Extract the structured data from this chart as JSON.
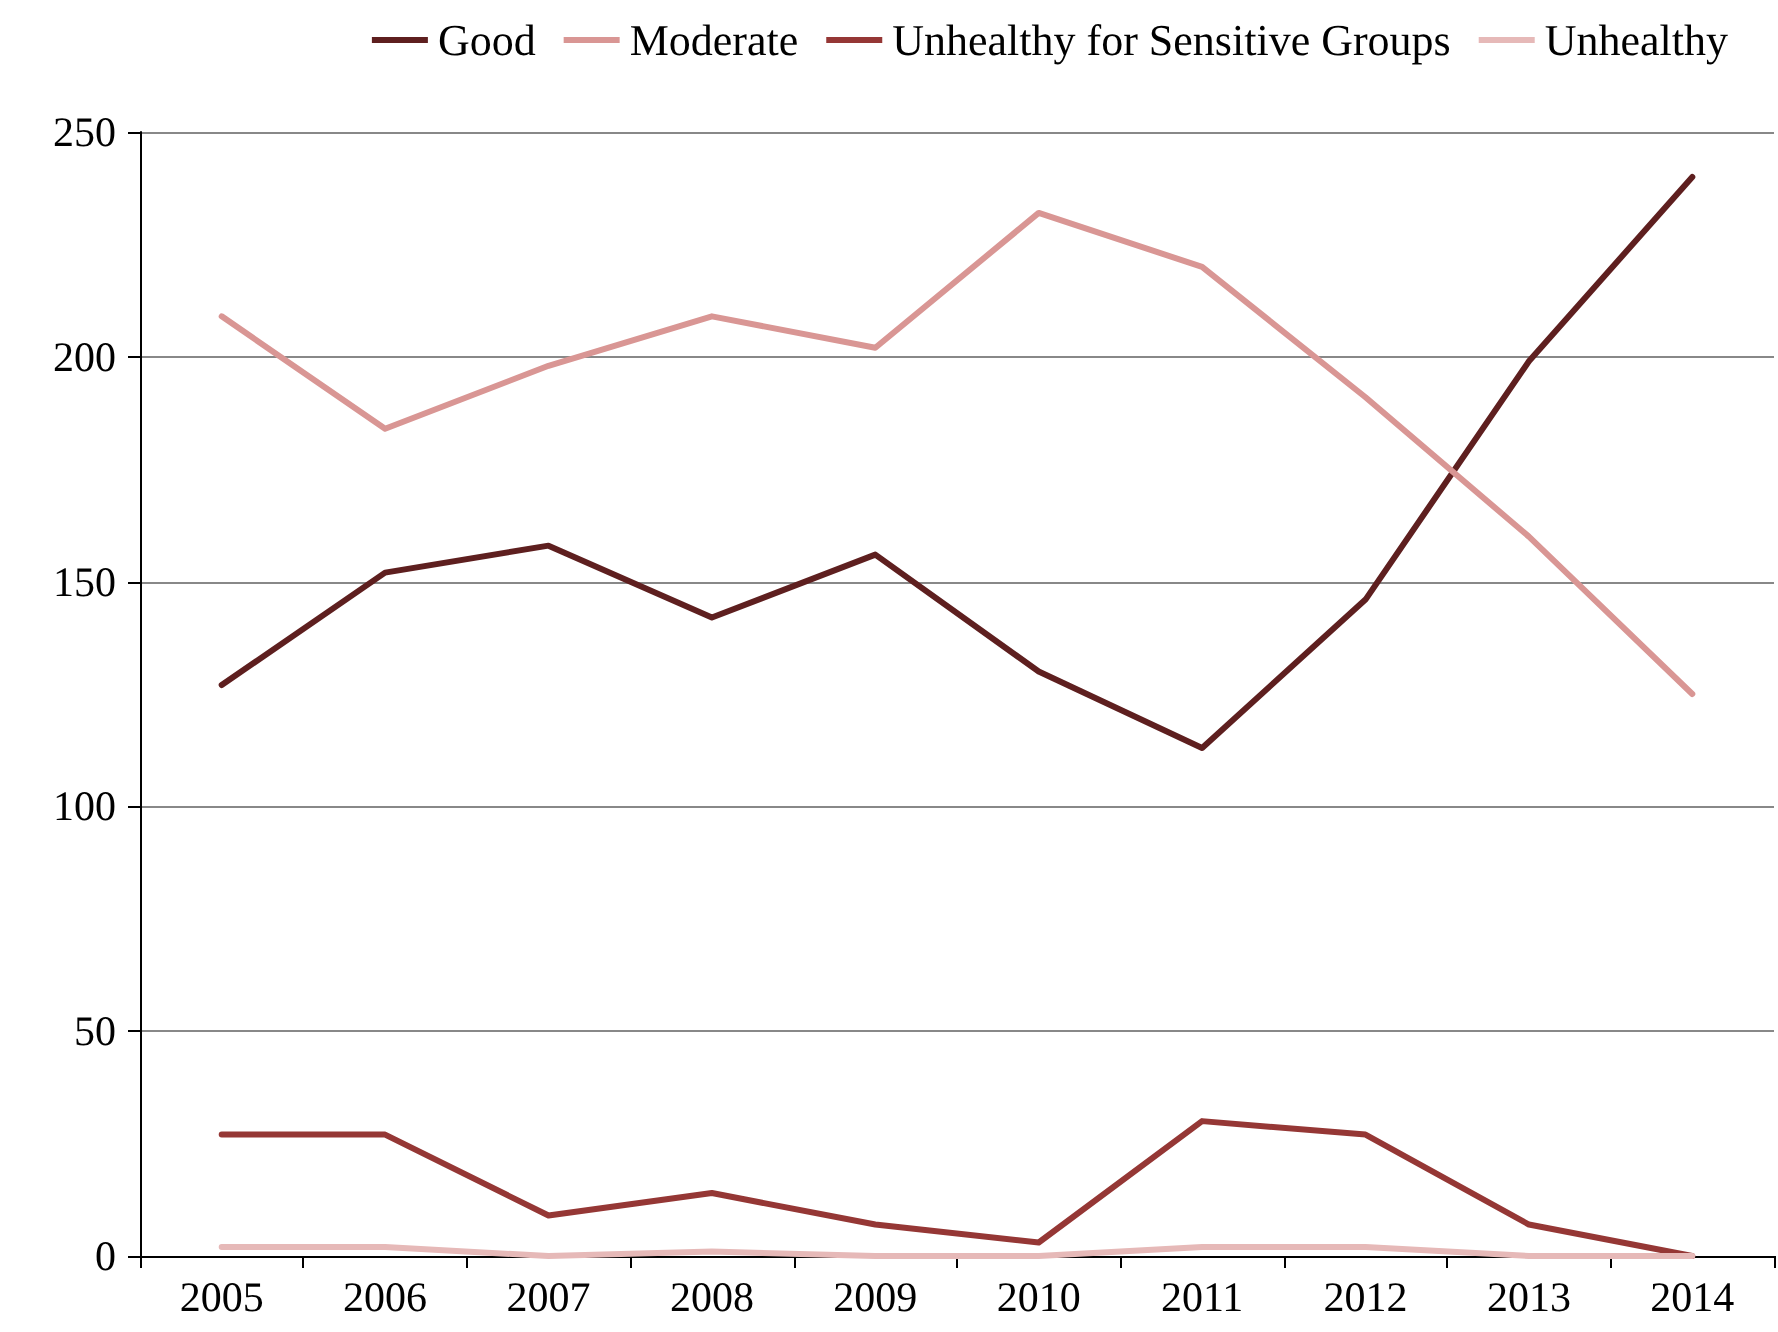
{
  "chart_data": {
    "type": "line",
    "categories": [
      "2005",
      "2006",
      "2007",
      "2008",
      "2009",
      "2010",
      "2011",
      "2012",
      "2013",
      "2014"
    ],
    "series": [
      {
        "name": "Good",
        "color": "#5e1f1f",
        "values": [
          127,
          152,
          158,
          142,
          156,
          130,
          113,
          146,
          199,
          240
        ]
      },
      {
        "name": "Moderate",
        "color": "#d99694",
        "values": [
          209,
          184,
          198,
          209,
          202,
          232,
          220,
          191,
          160,
          125
        ]
      },
      {
        "name": "Unhealthy for Sensitive Groups",
        "color": "#953735",
        "values": [
          27,
          27,
          9,
          14,
          7,
          3,
          30,
          27,
          7,
          0
        ]
      },
      {
        "name": "Unhealthy",
        "color": "#e6b9b8",
        "values": [
          2,
          2,
          0,
          1,
          0,
          0,
          2,
          2,
          0,
          0
        ]
      }
    ],
    "ylim": [
      0,
      250
    ],
    "yticks": [
      0,
      50,
      100,
      150,
      200,
      250
    ],
    "grid": "y",
    "legend": "top right",
    "marker": "none",
    "line_style": "solid"
  }
}
